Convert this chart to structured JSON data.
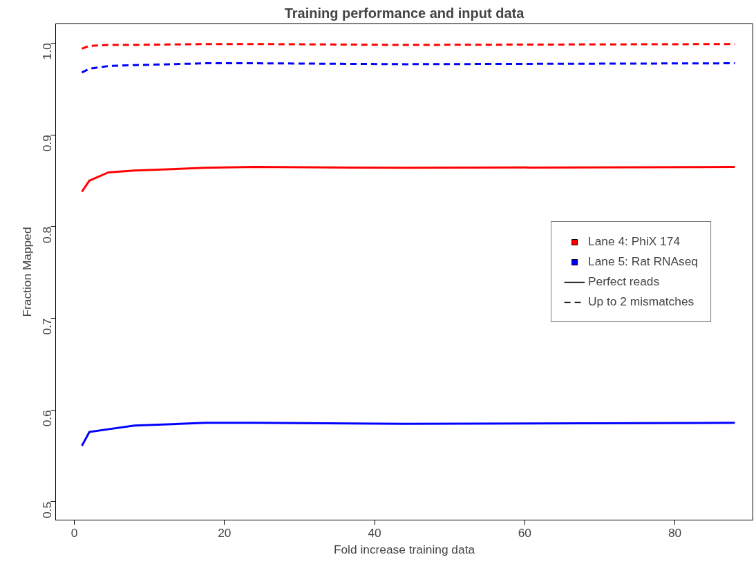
{
  "chart_data": {
    "type": "line",
    "title": "Training performance and input data",
    "xlabel": "Fold increase training data",
    "ylabel": "Fraction Mapped",
    "x": [
      1,
      2,
      4.5,
      8,
      17.5,
      24,
      44,
      88
    ],
    "series": [
      {
        "name": "Lane 4: PhiX 174",
        "color": "#ff0000",
        "line_style": "solid",
        "values": [
          0.838,
          0.85,
          0.859,
          0.861,
          0.864,
          0.865,
          0.864,
          0.865
        ]
      },
      {
        "name": "Lane 5: Rat RNAseq",
        "color": "#0000ff",
        "line_style": "solid",
        "values": [
          0.561,
          0.576,
          0.579,
          0.583,
          0.586,
          0.586,
          0.585,
          0.586
        ]
      },
      {
        "color": "#ff0000",
        "line_style": "dashed",
        "values": [
          0.994,
          0.997,
          0.998,
          0.998,
          0.999,
          0.999,
          0.998,
          0.999
        ]
      },
      {
        "color": "#0000ff",
        "line_style": "dashed",
        "values": [
          0.968,
          0.972,
          0.975,
          0.976,
          0.978,
          0.978,
          0.977,
          0.978
        ]
      }
    ],
    "annotations": [
      "Perfect reads",
      "Up to 2 mismatches"
    ],
    "xlim": [
      -2.5,
      90.4
    ],
    "ylim": [
      0.48,
      1.021
    ],
    "xticks": [
      0,
      20,
      40,
      60,
      80
    ],
    "yticks": [
      0.5,
      0.6,
      0.7,
      0.8,
      0.9,
      {
        "value": 1,
        "label": "1.0"
      }
    ],
    "grid": false,
    "legend": "right",
    "marker": "none"
  }
}
